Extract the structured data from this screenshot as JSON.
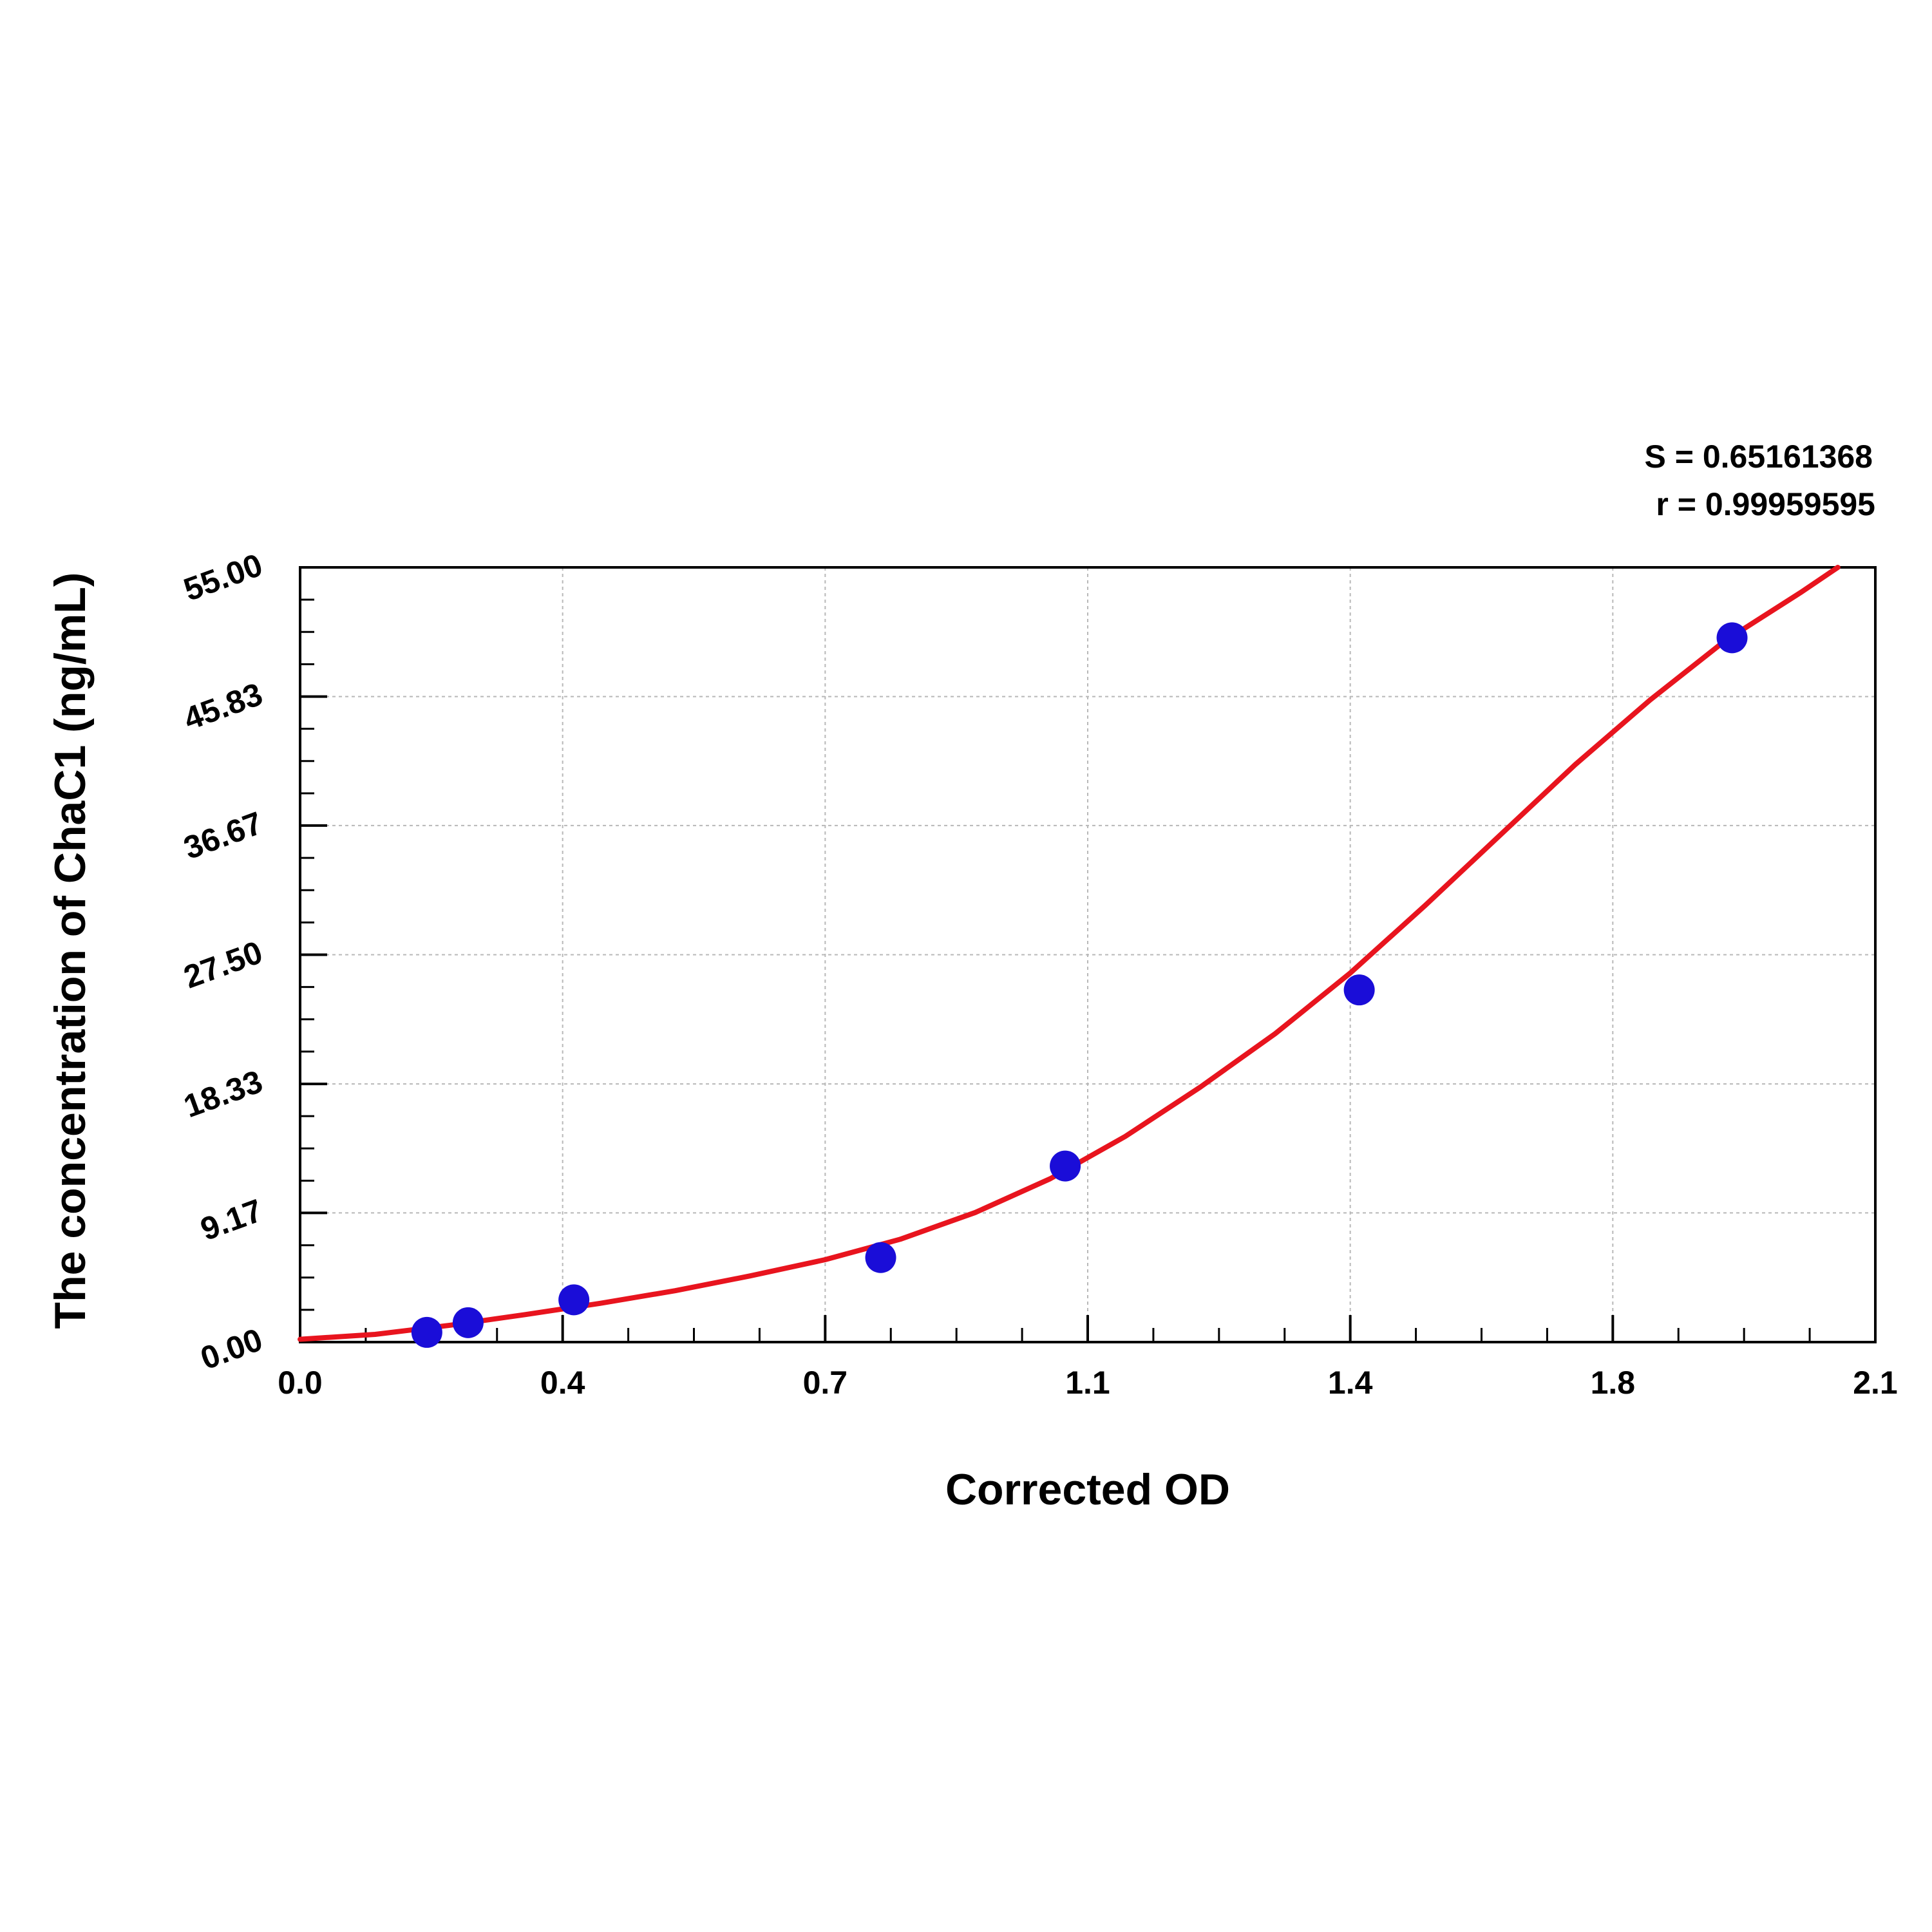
{
  "chart_data": {
    "type": "scatter",
    "xlabel": "Corrected OD",
    "ylabel": "The concentration of ChaC1 (ng/mL)",
    "xlim": [
      0,
      2.1
    ],
    "ylim": [
      0,
      55
    ],
    "x_ticks": [
      "0.0",
      "0.4",
      "0.7",
      "1.1",
      "1.4",
      "1.8",
      "2.1"
    ],
    "x_tick_values": [
      0,
      0.35,
      0.7,
      1.05,
      1.4,
      1.75,
      2.1
    ],
    "y_ticks": [
      "0.00",
      "9.17",
      "18.33",
      "27.50",
      "36.67",
      "45.83",
      "55.00"
    ],
    "y_tick_values": [
      0,
      9.17,
      18.33,
      27.5,
      36.67,
      45.83,
      55
    ],
    "grid": true,
    "series": [
      {
        "type": "scatter",
        "color": "#1a0dd8",
        "x": [
          0.169,
          0.224,
          0.365,
          0.774,
          1.02,
          1.412,
          1.909
        ],
        "y": [
          0.69,
          1.38,
          3.0,
          6.0,
          12.5,
          25.0,
          50.0
        ]
      },
      {
        "type": "line",
        "color": "#e8141e",
        "x": [
          0.0,
          0.1,
          0.2,
          0.3,
          0.4,
          0.5,
          0.6,
          0.7,
          0.8,
          0.9,
          1.0,
          1.1,
          1.2,
          1.3,
          1.4,
          1.5,
          1.6,
          1.7,
          1.8,
          1.9,
          2.0,
          2.05
        ],
        "y": [
          0.2,
          0.55,
          1.2,
          1.95,
          2.75,
          3.65,
          4.7,
          5.85,
          7.3,
          9.2,
          11.6,
          14.6,
          18.1,
          21.9,
          26.2,
          31.0,
          36.0,
          41.0,
          45.6,
          49.8,
          53.2,
          55.0
        ]
      }
    ],
    "annotations": [
      "S = 0.65161368",
      "r = 0.99959595"
    ]
  }
}
